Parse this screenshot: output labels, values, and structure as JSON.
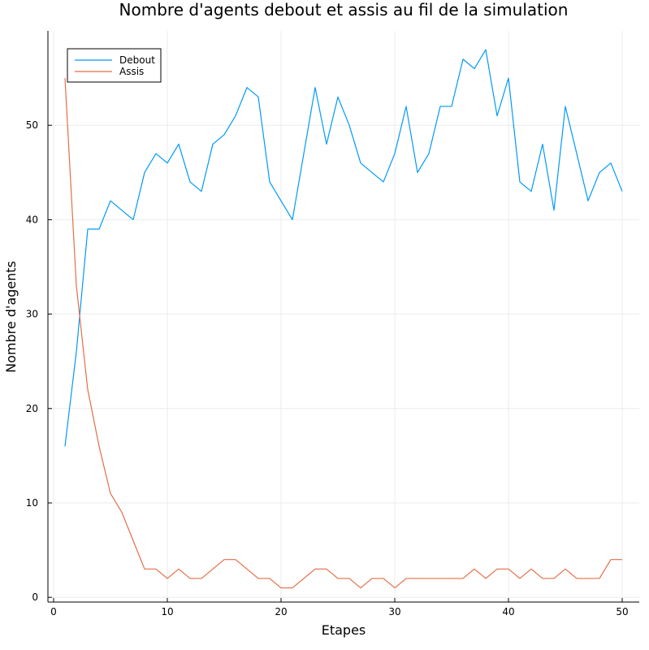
{
  "chart_data": {
    "type": "line",
    "title": "Nombre d'agents debout et assis au fil de la simulation",
    "xlabel": "Etapes",
    "ylabel": "Nombre d'agents",
    "xlim": [
      -0.5,
      51.5
    ],
    "ylim": [
      -0.5,
      60
    ],
    "xticks": [
      0,
      10,
      20,
      30,
      40,
      50
    ],
    "yticks": [
      0,
      10,
      20,
      30,
      40,
      50
    ],
    "grid": true,
    "legend": "top-left",
    "x": [
      1,
      2,
      3,
      4,
      5,
      6,
      7,
      8,
      9,
      10,
      11,
      12,
      13,
      14,
      15,
      16,
      17,
      18,
      19,
      20,
      21,
      22,
      23,
      24,
      25,
      26,
      27,
      28,
      29,
      30,
      31,
      32,
      33,
      34,
      35,
      36,
      37,
      38,
      39,
      40,
      41,
      42,
      43,
      44,
      45,
      46,
      47,
      48,
      49,
      50
    ],
    "series": [
      {
        "name": "Debout",
        "color": "#009AFA",
        "values": [
          16,
          26,
          39,
          39,
          42,
          41,
          40,
          45,
          47,
          46,
          48,
          44,
          43,
          48,
          49,
          51,
          54,
          53,
          44,
          42,
          40,
          47,
          54,
          48,
          53,
          50,
          46,
          45,
          44,
          47,
          52,
          45,
          47,
          52,
          52,
          57,
          56,
          58,
          51,
          55,
          44,
          43,
          48,
          41,
          52,
          47,
          42,
          45,
          46,
          43
        ]
      },
      {
        "name": "Assis",
        "color": "#E36F47",
        "values": [
          55,
          33,
          22,
          16,
          11,
          9,
          6,
          3,
          3,
          2,
          3,
          2,
          2,
          3,
          4,
          4,
          3,
          2,
          2,
          1,
          1,
          2,
          3,
          3,
          2,
          2,
          1,
          2,
          2,
          1,
          2,
          2,
          2,
          2,
          2,
          2,
          3,
          2,
          3,
          3,
          2,
          3,
          2,
          2,
          3,
          2,
          2,
          2,
          4,
          4
        ]
      }
    ]
  }
}
